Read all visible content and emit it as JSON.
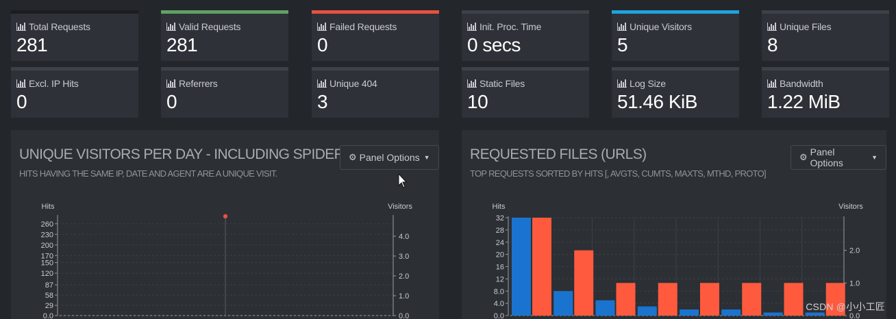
{
  "cards": [
    {
      "label": "Total Requests",
      "value": "281",
      "color": "#1b1d20"
    },
    {
      "label": "Valid Requests",
      "value": "281",
      "color": "#5fa264"
    },
    {
      "label": "Failed Requests",
      "value": "0",
      "color": "#e6513f"
    },
    {
      "label": "Init. Proc. Time",
      "value": "0 secs",
      "color": "#3d4148"
    },
    {
      "label": "Unique Visitors",
      "value": "5",
      "color": "#1ea3dd"
    },
    {
      "label": "Unique Files",
      "value": "8",
      "color": "#3d4148"
    },
    {
      "label": "Excl. IP Hits",
      "value": "0",
      "color": "#3d4148"
    },
    {
      "label": "Referrers",
      "value": "0",
      "color": "#3d4148"
    },
    {
      "label": "Unique 404",
      "value": "3",
      "color": "#3d4148"
    },
    {
      "label": "Static Files",
      "value": "10",
      "color": "#3d4148"
    },
    {
      "label": "Log Size",
      "value": "51.46 KiB",
      "color": "#3d4148"
    },
    {
      "label": "Bandwidth",
      "value": "1.22 MiB",
      "color": "#3d4148"
    }
  ],
  "panels": {
    "visitors": {
      "title": "UNIQUE VISITORS PER DAY - INCLUDING SPIDERS",
      "subtitle": "HITS HAVING THE SAME IP, DATE AND AGENT ARE A UNIQUE VISIT.",
      "options_label": "Panel Options"
    },
    "requests": {
      "title": "REQUESTED FILES (URLS)",
      "subtitle": "TOP REQUESTS SORTED BY HITS [, AVGTS, CUMTS, MAXTS, MTHD, PROTO]",
      "options_label": "Panel Options"
    }
  },
  "chart_data": [
    {
      "type": "line",
      "ylabel": "Hits",
      "y2label": "Visitors",
      "yticks": [
        "260",
        "230",
        "200",
        "170",
        "150",
        "120",
        "87",
        "58",
        "29",
        "0.0"
      ],
      "y2ticks": [
        "4.0",
        "3.0",
        "2.0",
        "1.0",
        "0.0"
      ],
      "ylim": [
        0,
        281
      ],
      "y2lim": [
        0,
        5
      ],
      "series": [
        {
          "color": "#e6513f",
          "values": [
            281
          ]
        }
      ],
      "grid": true
    },
    {
      "type": "bar",
      "ylabel": "Hits",
      "y2label": "Visitors",
      "yticks": [
        "32",
        "28",
        "24",
        "20",
        "16",
        "12",
        "8.0",
        "4.0",
        "0.0"
      ],
      "y2ticks": [
        "2.0",
        "1.0",
        "0.0"
      ],
      "ylim": [
        0,
        32
      ],
      "y2lim": [
        0,
        3
      ],
      "series": [
        {
          "color": "#1a74cf",
          "axis": "left",
          "values": [
            32,
            8,
            5,
            3,
            2,
            2,
            1,
            1
          ]
        },
        {
          "color": "#ff5a3e",
          "axis": "right",
          "values": [
            3,
            2,
            1,
            1,
            1,
            1,
            1,
            1
          ]
        }
      ],
      "grid": true
    }
  ],
  "watermark": "CSDN @小小工匠"
}
